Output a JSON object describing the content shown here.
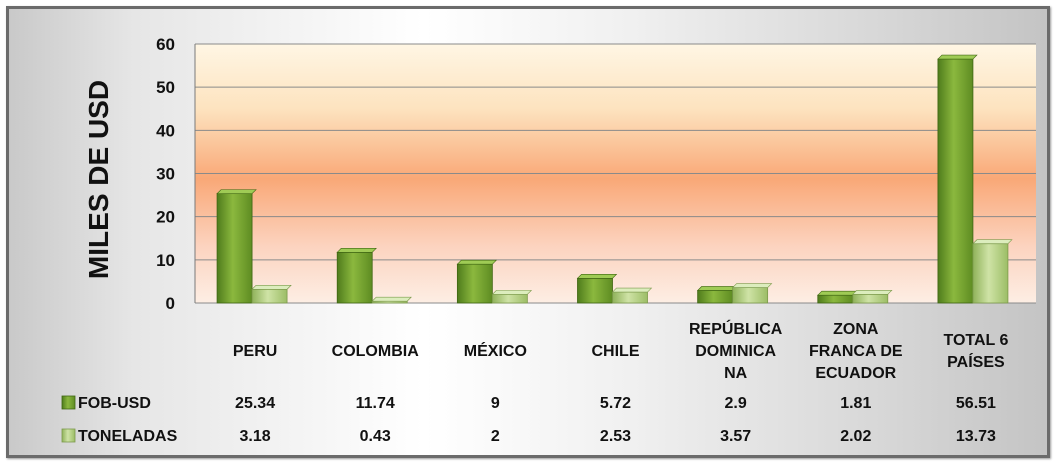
{
  "chart_data": {
    "type": "bar",
    "ylabel": "MILES DE USD",
    "ylim": [
      0,
      60
    ],
    "yticks": [
      "0",
      "10",
      "20",
      "30",
      "40",
      "50",
      "60"
    ],
    "grid": true,
    "categories": [
      [
        "PERU"
      ],
      [
        "COLOMBIA"
      ],
      [
        "MÉXICO"
      ],
      [
        "CHILE"
      ],
      [
        "REPÚBLICA",
        "DOMINICA",
        "NA"
      ],
      [
        "ZONA",
        "FRANCA DE",
        "ECUADOR"
      ],
      [
        "TOTAL 6",
        "PAÍSES"
      ]
    ],
    "series": [
      {
        "name": "FOB-USD",
        "values": [
          25.34,
          11.74,
          9,
          5.72,
          2.9,
          1.81,
          56.51
        ],
        "labels": [
          "25.34",
          "11.74",
          "9",
          "5.72",
          "2.9",
          "1.81",
          "56.51"
        ],
        "color": "#6f9a2a"
      },
      {
        "name": "TONELADAS",
        "values": [
          3.18,
          0.43,
          2,
          2.53,
          3.57,
          2.02,
          13.73
        ],
        "labels": [
          "3.18",
          "0.43",
          "2",
          "2.53",
          "3.57",
          "2.02",
          "13.73"
        ],
        "color": "#a8c870"
      }
    ],
    "legend": "data-table"
  }
}
